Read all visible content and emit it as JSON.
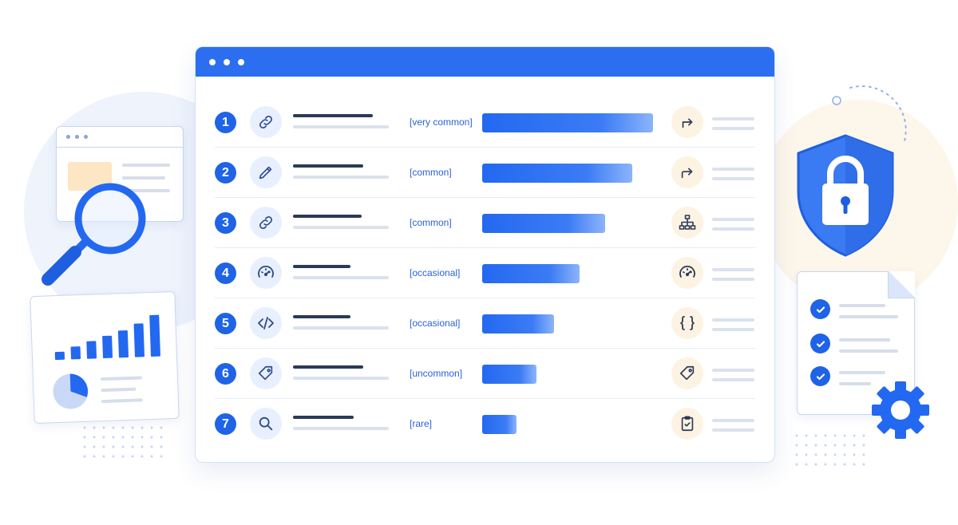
{
  "window": {
    "titlebar_dots": 3
  },
  "rows": [
    {
      "number": "1",
      "icon": "link-icon",
      "frequency": "[very common]",
      "bar_level": 1.0,
      "right_icon": "redirect-arrow-icon"
    },
    {
      "number": "2",
      "icon": "pencil-icon",
      "frequency": "[common]",
      "bar_level": 0.88,
      "right_icon": "share-arrow-icon"
    },
    {
      "number": "3",
      "icon": "link-icon",
      "frequency": "[common]",
      "bar_level": 0.72,
      "right_icon": "sitemap-icon"
    },
    {
      "number": "4",
      "icon": "speedometer-icon",
      "frequency": "[occasional]",
      "bar_level": 0.57,
      "right_icon": "speedometer-icon"
    },
    {
      "number": "5",
      "icon": "code-icon",
      "frequency": "[occasional]",
      "bar_level": 0.42,
      "right_icon": "curly-braces-icon"
    },
    {
      "number": "6",
      "icon": "tag-icon",
      "frequency": "[uncommon]",
      "bar_level": 0.32,
      "right_icon": "tag-icon"
    },
    {
      "number": "7",
      "icon": "search-icon",
      "frequency": "[rare]",
      "bar_level": 0.2,
      "right_icon": "clipboard-check-icon"
    }
  ],
  "decorations": {
    "left": [
      "browser-window-illustration",
      "magnifier-icon",
      "bar-chart-card"
    ],
    "right": [
      "security-shield-lock-icon",
      "checklist-document",
      "gear-icon"
    ]
  },
  "colors": {
    "accent": "#1f63e6",
    "bar": "#2368f0",
    "frequency_text": "#2a62d6",
    "icon_bg_left": "#e8efff",
    "icon_bg_right": "#fdf3e3"
  }
}
